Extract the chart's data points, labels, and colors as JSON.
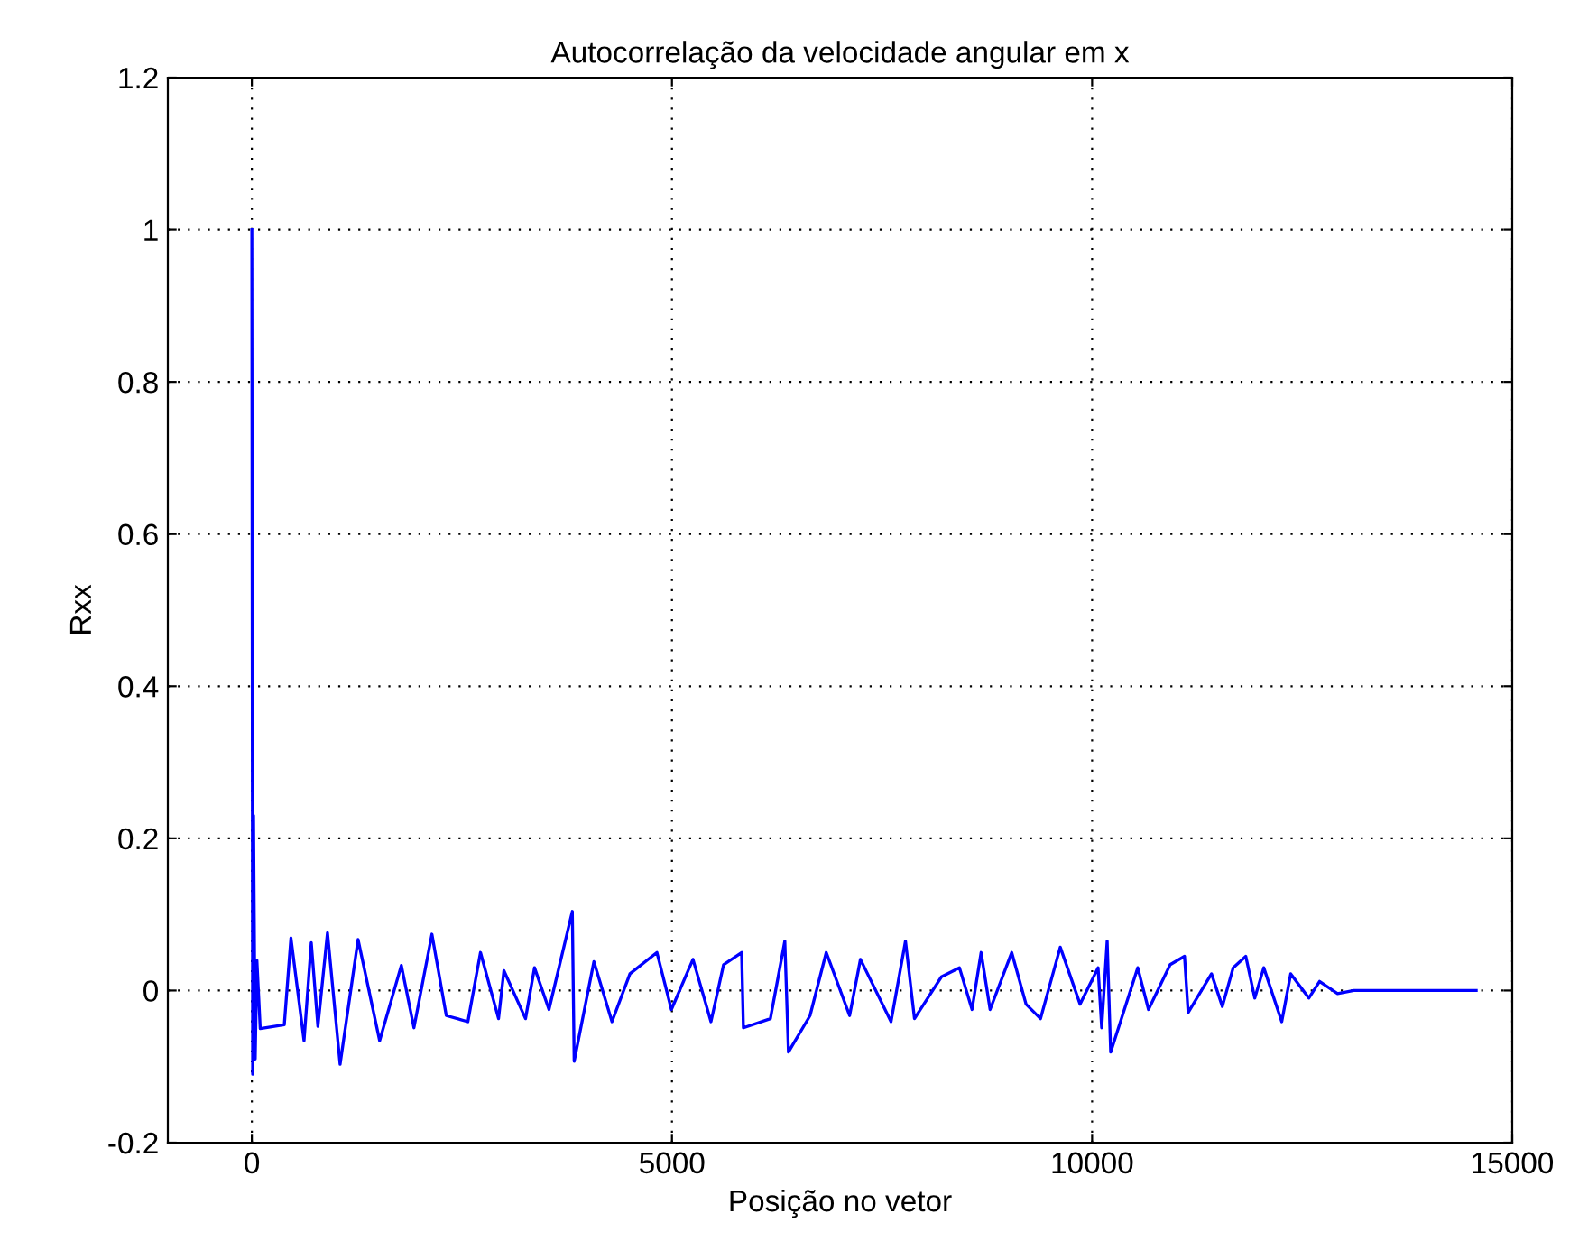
{
  "chart_data": {
    "type": "line",
    "title": "Autocorrelação da velocidade angular em x",
    "xlabel": "Posição no vetor",
    "ylabel": "Rxx",
    "xlim": [
      -1000,
      15000
    ],
    "xticks": [
      0,
      5000,
      10000,
      15000
    ],
    "ylim": [
      -0.2,
      1.2
    ],
    "yticks": [
      {
        "value": -0.2,
        "label": "-0.2"
      },
      0,
      {
        "value": 0.2,
        "label": "0.2"
      },
      {
        "value": 0.4,
        "label": "0.4"
      },
      {
        "value": 0.6,
        "label": "0.6"
      },
      {
        "value": 0.8,
        "label": "0.8"
      },
      1,
      {
        "value": 1.2,
        "label": "1.2"
      }
    ],
    "grid": true,
    "line_style": "solid",
    "marker": "none",
    "series": [
      {
        "color": "#0000ff",
        "x": [
          0,
          10,
          20,
          40,
          60,
          100,
          386,
          465,
          621,
          707,
          786,
          900,
          1050,
          1264,
          1521,
          1779,
          1929,
          2143,
          2314,
          2571,
          2721,
          2936,
          3000,
          3257,
          3364,
          3536,
          3814,
          3836,
          4071,
          4286,
          4500,
          4821,
          4993,
          5250,
          5464,
          5614,
          5829,
          5850,
          6171,
          6343,
          6386,
          6643,
          6836,
          7114,
          7243,
          7607,
          7779,
          7886,
          8207,
          8421,
          8571,
          8679,
          8786,
          9043,
          9214,
          9386,
          9621,
          9857,
          10071,
          10114,
          10179,
          10221,
          10543,
          10671,
          10929,
          11100,
          11143,
          11421,
          11550,
          11679,
          11829,
          11936,
          12043,
          12257,
          12364,
          12579,
          12707,
          12921,
          13114,
          14571
        ],
        "values": [
          1,
          -0.11,
          0.23,
          -0.09,
          0.04,
          -0.05,
          -0.045,
          0.069,
          -0.066,
          0.063,
          -0.047,
          0.076,
          -0.097,
          0.067,
          -0.066,
          0.033,
          -0.049,
          0.074,
          -0.033,
          -0.041,
          0.05,
          -0.037,
          0.026,
          -0.037,
          0.03,
          -0.025,
          0.104,
          -0.093,
          0.038,
          -0.041,
          0.022,
          0.05,
          -0.025,
          0.041,
          -0.041,
          0.034,
          0.05,
          -0.049,
          -0.037,
          0.065,
          -0.081,
          -0.033,
          0.05,
          -0.033,
          0.041,
          -0.041,
          0.065,
          -0.037,
          0.018,
          0.03,
          -0.025,
          0.05,
          -0.025,
          0.05,
          -0.018,
          -0.037,
          0.057,
          -0.018,
          0.03,
          -0.049,
          0.065,
          -0.081,
          0.03,
          -0.025,
          0.034,
          0.045,
          -0.029,
          0.022,
          -0.021,
          0.03,
          0.045,
          -0.01,
          0.03,
          -0.041,
          0.022,
          -0.01,
          0.012,
          -0.004,
          0,
          0
        ]
      }
    ]
  }
}
